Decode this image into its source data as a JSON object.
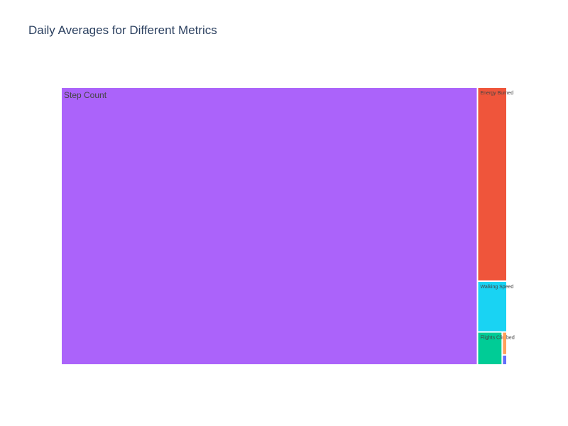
{
  "chart_data": {
    "type": "treemap",
    "title": "Daily Averages for Different Metrics",
    "items": [
      {
        "label": "Step Count",
        "value": 8500,
        "color": "#ab63fa",
        "show_label": true
      },
      {
        "label": "Energy Burned",
        "value": 420,
        "color": "#ef553b",
        "show_label": true
      },
      {
        "label": "Walking Speed",
        "value": 110,
        "color": "#19d3f3",
        "show_label": true
      },
      {
        "label": "Flights Climbed",
        "value": 60,
        "color": "#00cc96",
        "show_label": true
      },
      {
        "label": "",
        "value": 8,
        "color": "#ffa15a",
        "show_label": false
      },
      {
        "label": "",
        "value": 3.5,
        "color": "#636efa",
        "show_label": false
      }
    ]
  }
}
